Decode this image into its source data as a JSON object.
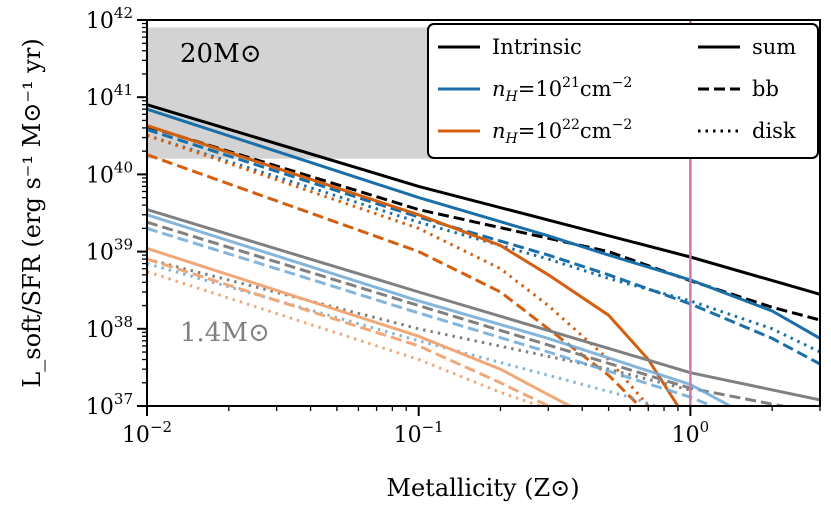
{
  "chart_data": {
    "type": "line",
    "xscale": "log",
    "yscale": "log",
    "xlim": [
      0.01,
      3
    ],
    "ylim": [
      1e+37,
      1e+42
    ],
    "x_ticks": [
      {
        "value": 0.01,
        "base": "10",
        "exp": "−2"
      },
      {
        "value": 0.1,
        "base": "10",
        "exp": "−1"
      },
      {
        "value": 1,
        "base": "10",
        "exp": "0"
      }
    ],
    "y_ticks": [
      {
        "value": 1e+37,
        "base": "10",
        "exp": "37"
      },
      {
        "value": 1e+38,
        "base": "10",
        "exp": "38"
      },
      {
        "value": 1e+39,
        "base": "10",
        "exp": "39"
      },
      {
        "value": 1e+40,
        "base": "10",
        "exp": "40"
      },
      {
        "value": 1e+41,
        "base": "10",
        "exp": "41"
      },
      {
        "value": 1e+42,
        "base": "10",
        "exp": "42"
      }
    ],
    "xlabel": "Metallicity (Z⊙)",
    "ylabel": "L_soft/SFR (erg s⁻¹ M⊙⁻¹ yr)",
    "grid": false,
    "legend_position": "top-right",
    "legend_color_entries": [
      {
        "label": "Intrinsic",
        "color": "#000000"
      },
      {
        "label": "n_H=10^21 cm^-2",
        "color": "#1a6fa8"
      },
      {
        "label": "n_H=10^22 cm^-2",
        "color": "#d35f0f"
      }
    ],
    "legend_style_entries": [
      {
        "label": "sum",
        "dash": "solid"
      },
      {
        "label": "bb",
        "dash": "dashed"
      },
      {
        "label": "disk",
        "dash": "dotted"
      }
    ],
    "annotations": {
      "high_mass_label": "20M⊙",
      "low_mass_label": "1.4M⊙"
    },
    "shaded_region": {
      "x": [
        0.01,
        1
      ],
      "y": [
        1.6e+40,
        8e+41
      ],
      "color": "#d3d3d3"
    },
    "vertical_line": {
      "x": 1.0,
      "color": "#cc79a7"
    },
    "series": [
      {
        "group": "20M",
        "color": "#000000",
        "dash": "solid",
        "opacity": 1.0,
        "x": [
          0.01,
          0.1,
          1,
          3
        ],
        "y": [
          8e+40,
          7e+39,
          8.5e+38,
          2.8e+38
        ]
      },
      {
        "group": "20M",
        "color": "#000000",
        "dash": "dashed",
        "opacity": 1.0,
        "x": [
          0.01,
          0.1,
          0.5,
          1,
          2,
          3
        ],
        "y": [
          4.2e+40,
          3.5e+39,
          1e+39,
          4.2e+38,
          1.9e+38,
          1.3e+38
        ]
      },
      {
        "group": "20M",
        "color": "#1a6fa8",
        "dash": "solid",
        "opacity": 1.0,
        "x": [
          0.01,
          0.1,
          0.3,
          0.5,
          1,
          2,
          3
        ],
        "y": [
          7e+40,
          5e+39,
          1.6e+39,
          9e+38,
          4.3e+38,
          1.7e+38,
          7.5e+37
        ]
      },
      {
        "group": "20M",
        "color": "#1a6fa8",
        "dash": "dashed",
        "opacity": 1.0,
        "x": [
          0.01,
          0.1,
          0.3,
          0.5,
          1,
          2,
          3
        ],
        "y": [
          3.8e+40,
          2.8e+39,
          9e+38,
          5e+38,
          2.1e+38,
          7.5e+37,
          3.5e+37
        ]
      },
      {
        "group": "20M",
        "color": "#1a6fa8",
        "dash": "dotted",
        "opacity": 1.0,
        "x": [
          0.01,
          0.1,
          0.3,
          0.5,
          1,
          2,
          3
        ],
        "y": [
          3.2e+40,
          2.4e+39,
          8e+38,
          4.5e+38,
          2.3e+38,
          1e+38,
          5e+37
        ]
      },
      {
        "group": "20M",
        "color": "#d35f0f",
        "dash": "solid",
        "opacity": 1.0,
        "x": [
          0.01,
          0.1,
          0.2,
          0.3,
          0.5,
          0.7,
          0.9
        ],
        "y": [
          4.3e+40,
          3e+39,
          1.2e+39,
          5e+38,
          1.5e+38,
          4e+37,
          1e+37
        ]
      },
      {
        "group": "20M",
        "color": "#d35f0f",
        "dash": "dotted",
        "opacity": 1.0,
        "x": [
          0.01,
          0.1,
          0.2,
          0.3,
          0.5,
          0.7
        ],
        "y": [
          3.2e+40,
          2e+39,
          6e+38,
          2e+38,
          4e+37,
          1e+37
        ]
      },
      {
        "group": "20M",
        "color": "#d35f0f",
        "dash": "dashed",
        "opacity": 1.0,
        "x": [
          0.01,
          0.1,
          0.2,
          0.3,
          0.5,
          0.65
        ],
        "y": [
          1.8e+40,
          1e+39,
          3e+38,
          1e+38,
          2.5e+37,
          1e+37
        ]
      },
      {
        "group": "1.4M",
        "color": "#808080",
        "dash": "solid",
        "opacity": 1.0,
        "x": [
          0.01,
          0.1,
          1,
          3
        ],
        "y": [
          3.5e+39,
          3e+38,
          2.7e+37,
          1.2e+37
        ]
      },
      {
        "group": "1.4M",
        "color": "#808080",
        "dash": "dashed",
        "opacity": 1.0,
        "x": [
          0.01,
          0.1,
          1,
          3
        ],
        "y": [
          2.4e+39,
          2e+38,
          1.7e+37,
          8e+36
        ]
      },
      {
        "group": "1.4M",
        "color": "#808080",
        "dash": "dotted",
        "opacity": 1.0,
        "x": [
          0.01,
          0.1,
          0.5,
          1
        ],
        "y": [
          8e+38,
          1e+38,
          3e+37,
          1.6e+37
        ]
      },
      {
        "group": "1.4M",
        "color": "#6fa8d6",
        "dash": "solid",
        "opacity": 0.85,
        "x": [
          0.01,
          0.1,
          0.3,
          1,
          1.4
        ],
        "y": [
          3e+39,
          2.3e+38,
          7.5e+37,
          1.9e+37,
          1e+37
        ]
      },
      {
        "group": "1.4M",
        "color": "#6fa8d6",
        "dash": "dashed",
        "opacity": 0.85,
        "x": [
          0.01,
          0.1,
          0.3,
          1,
          1.2
        ],
        "y": [
          2e+39,
          1.6e+38,
          5e+37,
          1.3e+37,
          1e+37
        ]
      },
      {
        "group": "1.4M",
        "color": "#6fa8d6",
        "dash": "dotted",
        "opacity": 0.85,
        "x": [
          0.01,
          0.1,
          0.3,
          0.6,
          1
        ],
        "y": [
          7e+38,
          7e+37,
          2.5e+37,
          1.3e+37,
          7e+36
        ]
      },
      {
        "group": "1.4M",
        "color": "#f0a878",
        "dash": "solid",
        "opacity": 1.0,
        "x": [
          0.01,
          0.1,
          0.2,
          0.3,
          0.36
        ],
        "y": [
          1.1e+39,
          8e+37,
          3e+37,
          1.4e+37,
          1e+37
        ]
      },
      {
        "group": "1.4M",
        "color": "#f0a878",
        "dash": "dashed",
        "opacity": 1.0,
        "x": [
          0.01,
          0.1,
          0.2,
          0.3
        ],
        "y": [
          8e+38,
          6e+37,
          2e+37,
          1e+37
        ]
      },
      {
        "group": "1.4M",
        "color": "#f0a878",
        "dash": "dotted",
        "opacity": 1.0,
        "x": [
          0.01,
          0.1,
          0.2,
          0.28
        ],
        "y": [
          5.5e+38,
          4e+37,
          1.5e+37,
          1e+37
        ]
      }
    ]
  }
}
